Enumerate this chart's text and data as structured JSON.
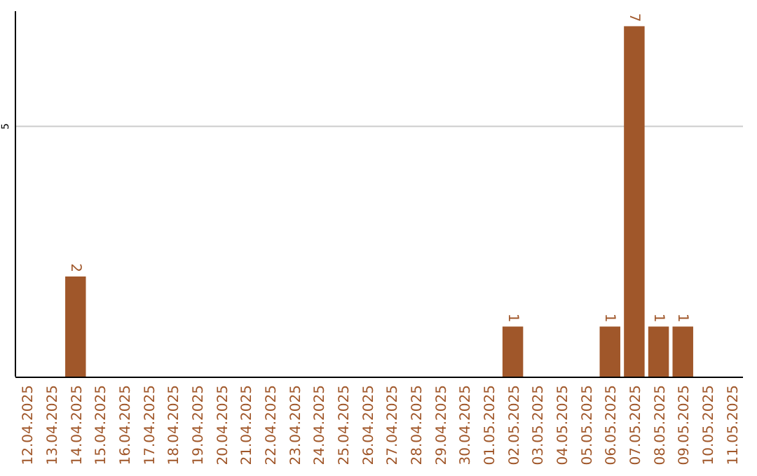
{
  "chart_data": {
    "type": "bar",
    "categories": [
      "12.04.2025",
      "13.04.2025",
      "14.04.2025",
      "15.04.2025",
      "16.04.2025",
      "17.04.2025",
      "18.04.2025",
      "19.04.2025",
      "20.04.2025",
      "21.04.2025",
      "22.04.2025",
      "23.04.2025",
      "24.04.2025",
      "25.04.2025",
      "26.04.2025",
      "27.04.2025",
      "28.04.2025",
      "29.04.2025",
      "30.04.2025",
      "01.05.2025",
      "02.05.2025",
      "03.05.2025",
      "04.05.2025",
      "05.05.2025",
      "06.05.2025",
      "07.05.2025",
      "08.05.2025",
      "09.05.2025",
      "10.05.2025",
      "11.05.2025"
    ],
    "values": [
      0,
      0,
      2,
      0,
      0,
      0,
      0,
      0,
      0,
      0,
      0,
      0,
      0,
      0,
      0,
      0,
      0,
      0,
      0,
      0,
      1,
      0,
      0,
      0,
      1,
      7,
      1,
      1,
      0,
      0
    ],
    "value_labels": [
      null,
      null,
      "2",
      null,
      null,
      null,
      null,
      null,
      null,
      null,
      null,
      null,
      null,
      null,
      null,
      null,
      null,
      null,
      null,
      null,
      "1",
      null,
      null,
      null,
      "1",
      "7",
      "1",
      "1",
      null,
      null
    ],
    "color": "#a0572a",
    "ylim": [
      0,
      7.3
    ],
    "yticks": [
      5
    ],
    "grid": "y"
  }
}
